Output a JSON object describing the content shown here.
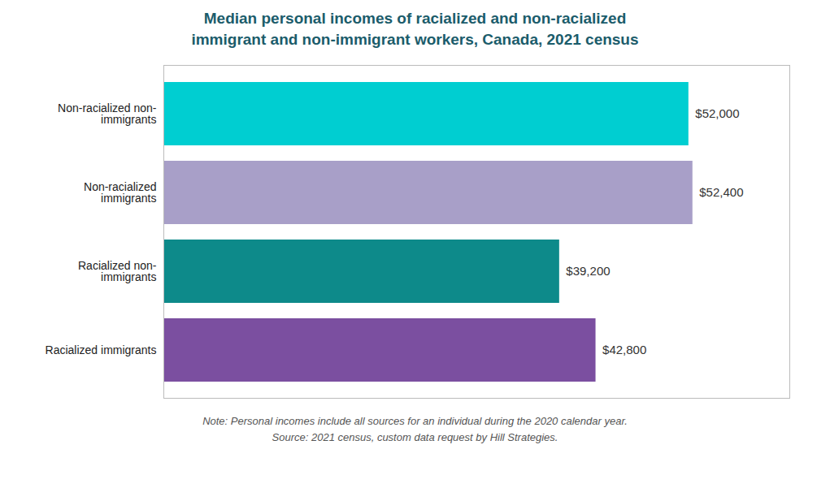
{
  "chart_data": {
    "type": "bar",
    "orientation": "horizontal",
    "title": "Median personal incomes of racialized and non-racialized\nimmigrant and non-immigrant workers, Canada, 2021 census",
    "categories": [
      "Racialized immigrants",
      "Racialized non-\nimmigrants",
      "Non-racialized\nimmigrants",
      "Non-racialized non-\nimmigrants"
    ],
    "values": [
      42800,
      39200,
      52400,
      52000
    ],
    "colors": [
      "#7B4FA0",
      "#0D8A8A",
      "#A89FC8",
      "#00CED1"
    ],
    "value_labels": [
      "$42,800",
      "$39,200",
      "$52,400",
      "$52,000"
    ],
    "data_labels": true,
    "xlim": [
      0,
      62000
    ],
    "xticks": [],
    "tick_labels": "y",
    "title_color": "#1B5C6B",
    "note": "Note: Personal incomes include all sources for an individual during the 2020 calendar year.\nSource: 2021 census, custom data request by Hill Strategies."
  }
}
